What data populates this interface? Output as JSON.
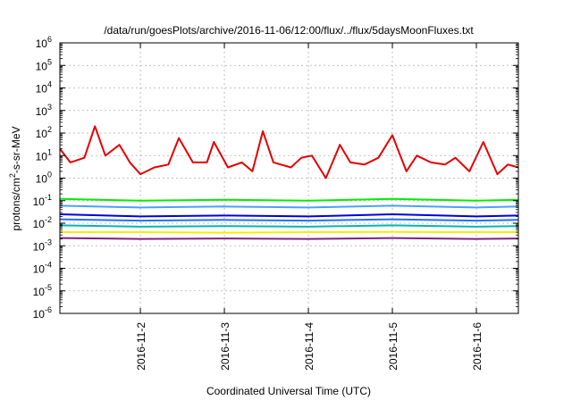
{
  "chart_data": {
    "type": "line",
    "title": "/data/run/goesPlots/archive/2016-11-06/12:00/flux/../flux/5daysMoonFluxes.txt",
    "xlabel": "Coordinated Universal Time (UTC)",
    "ylabel": "protons/cm2-s-sr-MeV",
    "ylabel_parts": [
      "protons/cm",
      "2",
      "-s-sr-MeV"
    ],
    "yscale": "log",
    "ylim": [
      1e-06,
      1000000.0
    ],
    "y_ticks": [
      {
        "value": 1e-06,
        "base": "10",
        "exp": "-6"
      },
      {
        "value": 1e-05,
        "base": "10",
        "exp": "-5"
      },
      {
        "value": 0.0001,
        "base": "10",
        "exp": "-4"
      },
      {
        "value": 0.001,
        "base": "10",
        "exp": "-3"
      },
      {
        "value": 0.01,
        "base": "10",
        "exp": "-2"
      },
      {
        "value": 0.1,
        "base": "10",
        "exp": "-1"
      },
      {
        "value": 1,
        "base": "10",
        "exp": "0"
      },
      {
        "value": 10,
        "base": "10",
        "exp": "1"
      },
      {
        "value": 100,
        "base": "10",
        "exp": "2"
      },
      {
        "value": 1000,
        "base": "10",
        "exp": "3"
      },
      {
        "value": 10000,
        "base": "10",
        "exp": "4"
      },
      {
        "value": 100000,
        "base": "10",
        "exp": "5"
      },
      {
        "value": 1000000,
        "base": "10",
        "exp": "6"
      }
    ],
    "xlim": [
      "2016-11-01 01:00",
      "2016-11-06 12:00"
    ],
    "x_ticks": [
      "2016-11-2",
      "2016-11-3",
      "2016-11-4",
      "2016-11-5",
      "2016-11-6"
    ],
    "grid": true,
    "legend": "none",
    "series": [
      {
        "color": "#e60000",
        "x": [
          "2016-11-01 01:00",
          "2016-11-01 04:00",
          "2016-11-01 08:00",
          "2016-11-01 11:00",
          "2016-11-01 14:00",
          "2016-11-01 18:00",
          "2016-11-01 21:00",
          "2016-11-02 00:00",
          "2016-11-02 04:00",
          "2016-11-02 08:00",
          "2016-11-02 11:00",
          "2016-11-02 15:00",
          "2016-11-02 19:00",
          "2016-11-02 21:00",
          "2016-11-03 01:00",
          "2016-11-03 05:00",
          "2016-11-03 08:00",
          "2016-11-03 11:00",
          "2016-11-03 14:00",
          "2016-11-03 19:00",
          "2016-11-03 22:00",
          "2016-11-04 01:00",
          "2016-11-04 05:00",
          "2016-11-04 09:00",
          "2016-11-04 12:00",
          "2016-11-04 16:00",
          "2016-11-04 20:00",
          "2016-11-05 00:00",
          "2016-11-05 04:00",
          "2016-11-05 07:00",
          "2016-11-05 11:00",
          "2016-11-05 15:00",
          "2016-11-05 18:00",
          "2016-11-05 22:00",
          "2016-11-06 02:00",
          "2016-11-06 06:00",
          "2016-11-06 09:00",
          "2016-11-06 12:00"
        ],
        "y": [
          20,
          5,
          8,
          200,
          10,
          30,
          5,
          1.5,
          3,
          4,
          60,
          5,
          5,
          40,
          3,
          5,
          2,
          120,
          5,
          3,
          8,
          10,
          1,
          30,
          5,
          4,
          8,
          80,
          2,
          10,
          5,
          4,
          8,
          2,
          40,
          1.5,
          4,
          3
        ]
      },
      {
        "color": "#00ee00",
        "x": [
          "2016-11-01 01:00",
          "2016-11-02 00:00",
          "2016-11-03 00:00",
          "2016-11-04 00:00",
          "2016-11-05 00:00",
          "2016-11-06 00:00",
          "2016-11-06 12:00"
        ],
        "y": [
          0.12,
          0.1,
          0.11,
          0.1,
          0.12,
          0.1,
          0.11
        ]
      },
      {
        "color": "#4aa0ff",
        "x": [
          "2016-11-01 01:00",
          "2016-11-02 00:00",
          "2016-11-03 00:00",
          "2016-11-04 00:00",
          "2016-11-05 00:00",
          "2016-11-06 00:00",
          "2016-11-06 12:00"
        ],
        "y": [
          0.06,
          0.05,
          0.055,
          0.05,
          0.06,
          0.05,
          0.055
        ]
      },
      {
        "color": "#0000dd",
        "x": [
          "2016-11-01 01:00",
          "2016-11-02 00:00",
          "2016-11-03 00:00",
          "2016-11-04 00:00",
          "2016-11-05 00:00",
          "2016-11-06 00:00",
          "2016-11-06 12:00"
        ],
        "y": [
          0.025,
          0.02,
          0.022,
          0.02,
          0.025,
          0.02,
          0.022
        ]
      },
      {
        "color": "#2070ff",
        "x": [
          "2016-11-01 01:00",
          "2016-11-02 00:00",
          "2016-11-03 00:00",
          "2016-11-04 00:00",
          "2016-11-05 00:00",
          "2016-11-06 00:00",
          "2016-11-06 12:00"
        ],
        "y": [
          0.015,
          0.013,
          0.014,
          0.013,
          0.015,
          0.013,
          0.014
        ]
      },
      {
        "color": "#00b8b0",
        "x": [
          "2016-11-01 01:00",
          "2016-11-02 00:00",
          "2016-11-03 00:00",
          "2016-11-04 00:00",
          "2016-11-05 00:00",
          "2016-11-06 00:00",
          "2016-11-06 12:00"
        ],
        "y": [
          0.008,
          0.007,
          0.0075,
          0.007,
          0.008,
          0.007,
          0.0075
        ]
      },
      {
        "color": "#f0f000",
        "x": [
          "2016-11-01 01:00",
          "2016-11-02 00:00",
          "2016-11-03 00:00",
          "2016-11-04 00:00",
          "2016-11-05 00:00",
          "2016-11-06 00:00",
          "2016-11-06 12:00"
        ],
        "y": [
          0.004,
          0.004,
          0.0038,
          0.004,
          0.0041,
          0.004,
          0.004
        ]
      },
      {
        "color": "#802080",
        "x": [
          "2016-11-01 01:00",
          "2016-11-02 00:00",
          "2016-11-03 00:00",
          "2016-11-04 00:00",
          "2016-11-05 00:00",
          "2016-11-06 00:00",
          "2016-11-06 12:00"
        ],
        "y": [
          0.0022,
          0.002,
          0.0021,
          0.002,
          0.0022,
          0.002,
          0.0021
        ]
      }
    ]
  }
}
